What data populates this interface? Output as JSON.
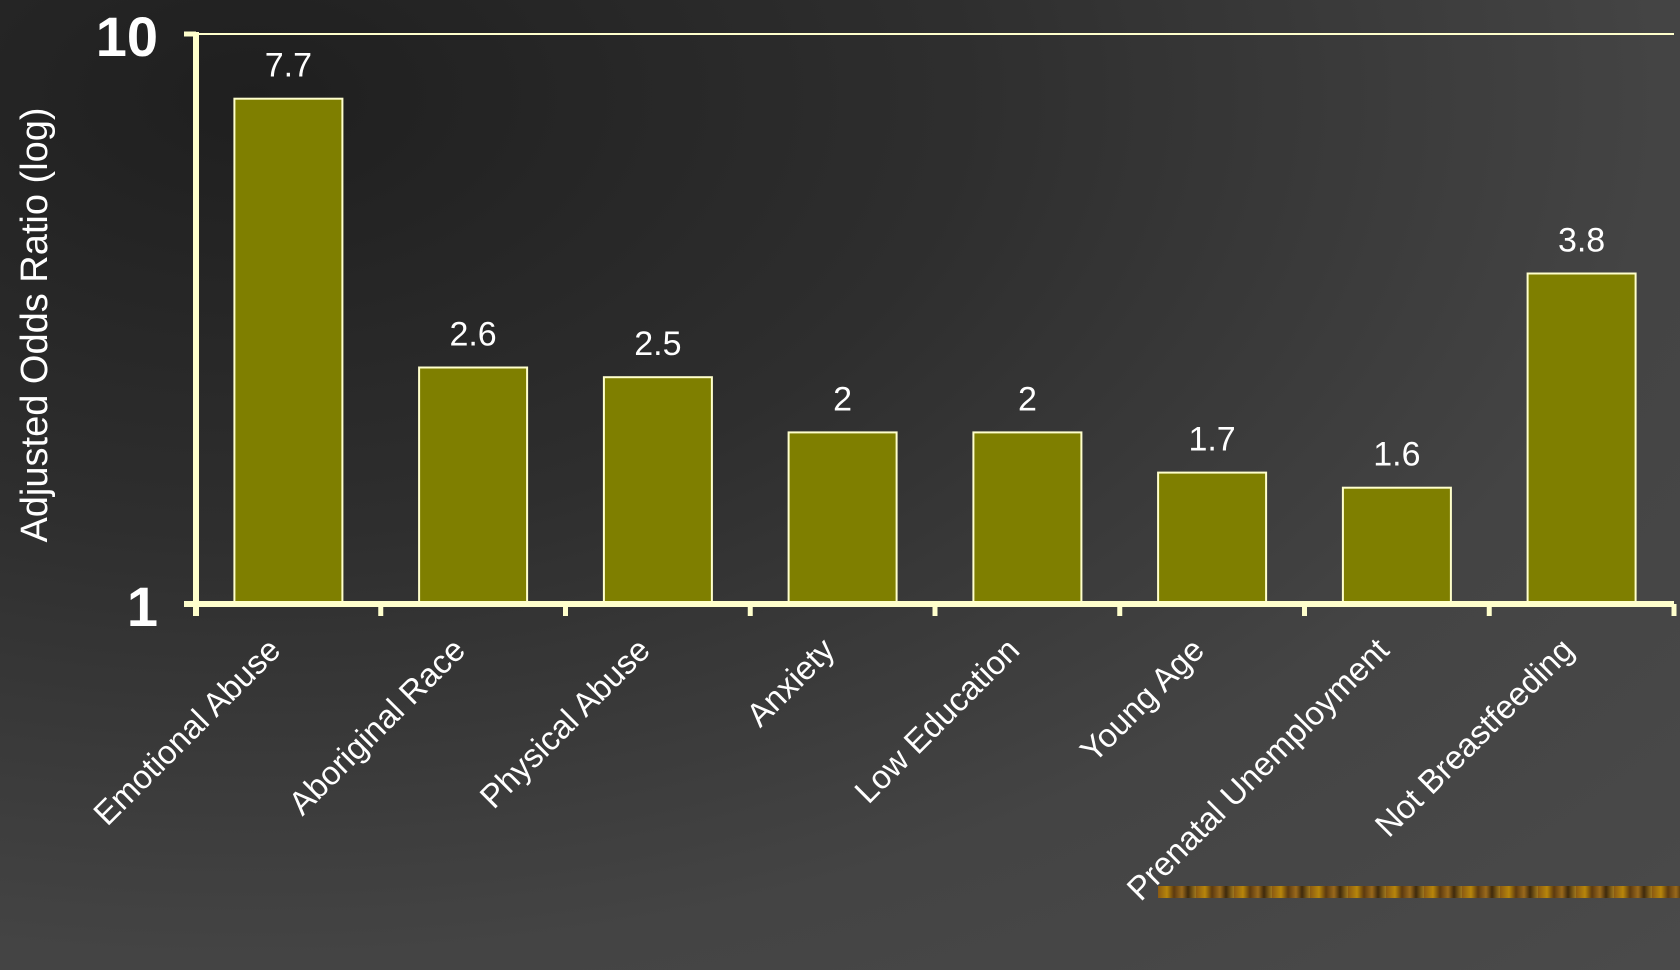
{
  "chart_data": {
    "type": "bar",
    "ylabel": "Adjusted Odds Ratio (log)",
    "y_scale": "log",
    "ylim": [
      1,
      10
    ],
    "y_ticks": [
      "1",
      "10"
    ],
    "categories": [
      "Emotional Abuse",
      "Aboriginal Race",
      "Physical Abuse",
      "Anxiety",
      "Low Education",
      "Young Age",
      "Prenatal Unemployment",
      "Not Breastfeeding"
    ],
    "values": [
      7.7,
      2.6,
      2.5,
      2,
      2,
      1.7,
      1.6,
      3.8
    ],
    "data_labels": [
      "7.7",
      "2.6",
      "2.5",
      "2",
      "2",
      "1.7",
      "1.6",
      "3.8"
    ],
    "grid": false,
    "colors": {
      "bar_fill": "#7f7f00",
      "bar_stroke": "#ffffcc",
      "axis": "#ffffcc",
      "text": "#ffffff"
    }
  }
}
